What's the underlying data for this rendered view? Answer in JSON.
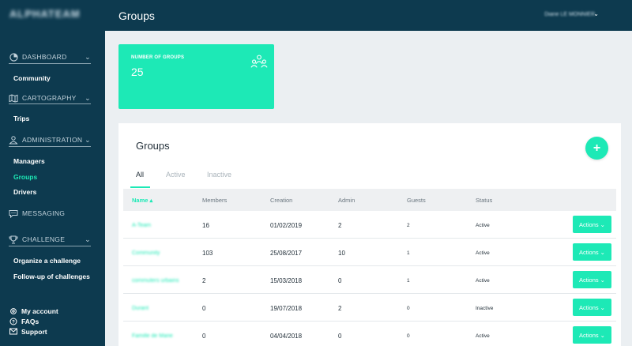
{
  "app": {
    "logo": "ALPHATEAM"
  },
  "header": {
    "title": "Groups",
    "user": "Diane LE MONNIER"
  },
  "sidebar": {
    "sections": [
      {
        "label": "DASHBOARD",
        "icon": "dashboard-icon"
      },
      {
        "label": "CARTOGRAPHY",
        "icon": "map-icon"
      },
      {
        "label": "ADMINISTRATION",
        "icon": "users-icon"
      },
      {
        "label": "MESSAGING",
        "icon": "chat-icon"
      },
      {
        "label": "CHALLENGE",
        "icon": "trophy-icon"
      }
    ],
    "items": {
      "community": "Community",
      "trips": "Trips",
      "managers": "Managers",
      "groups": "Groups",
      "drivers": "Drivers",
      "organize": "Organize a challenge",
      "followup": "Follow-up of challenges"
    },
    "footer": [
      {
        "label": "My account",
        "icon": "settings-icon"
      },
      {
        "label": "FAQs",
        "icon": "help-icon"
      },
      {
        "label": "Support",
        "icon": "mail-icon"
      }
    ]
  },
  "stat": {
    "label": "NUMBER OF GROUPS",
    "value": "25",
    "icon": "group-icon"
  },
  "panel": {
    "title": "Groups",
    "add_label": "+",
    "tabs": [
      "All",
      "Active",
      "Inactive"
    ],
    "columns": [
      "Name",
      "Members",
      "Creation",
      "Admin",
      "Guests",
      "Status"
    ],
    "sort_indicator": "▴",
    "action_label": "Actions",
    "rows": [
      {
        "name": "A-Team",
        "members": "16",
        "creation": "01/02/2019",
        "admin": "2",
        "guests": "2",
        "status": "Active"
      },
      {
        "name": "Community",
        "members": "103",
        "creation": "25/08/2017",
        "admin": "10",
        "guests": "1",
        "status": "Active"
      },
      {
        "name": "commuters urbains",
        "members": "2",
        "creation": "15/03/2018",
        "admin": "0",
        "guests": "1",
        "status": "Active"
      },
      {
        "name": "Durant",
        "members": "0",
        "creation": "19/07/2018",
        "admin": "2",
        "guests": "0",
        "status": "Inactive"
      },
      {
        "name": "Famille de Marie",
        "members": "0",
        "creation": "04/04/2018",
        "admin": "0",
        "guests": "0",
        "status": "Active"
      }
    ]
  },
  "colors": {
    "sidebar": "#0d3a4f",
    "accent": "#1de9b6",
    "background": "#ebeff2"
  }
}
